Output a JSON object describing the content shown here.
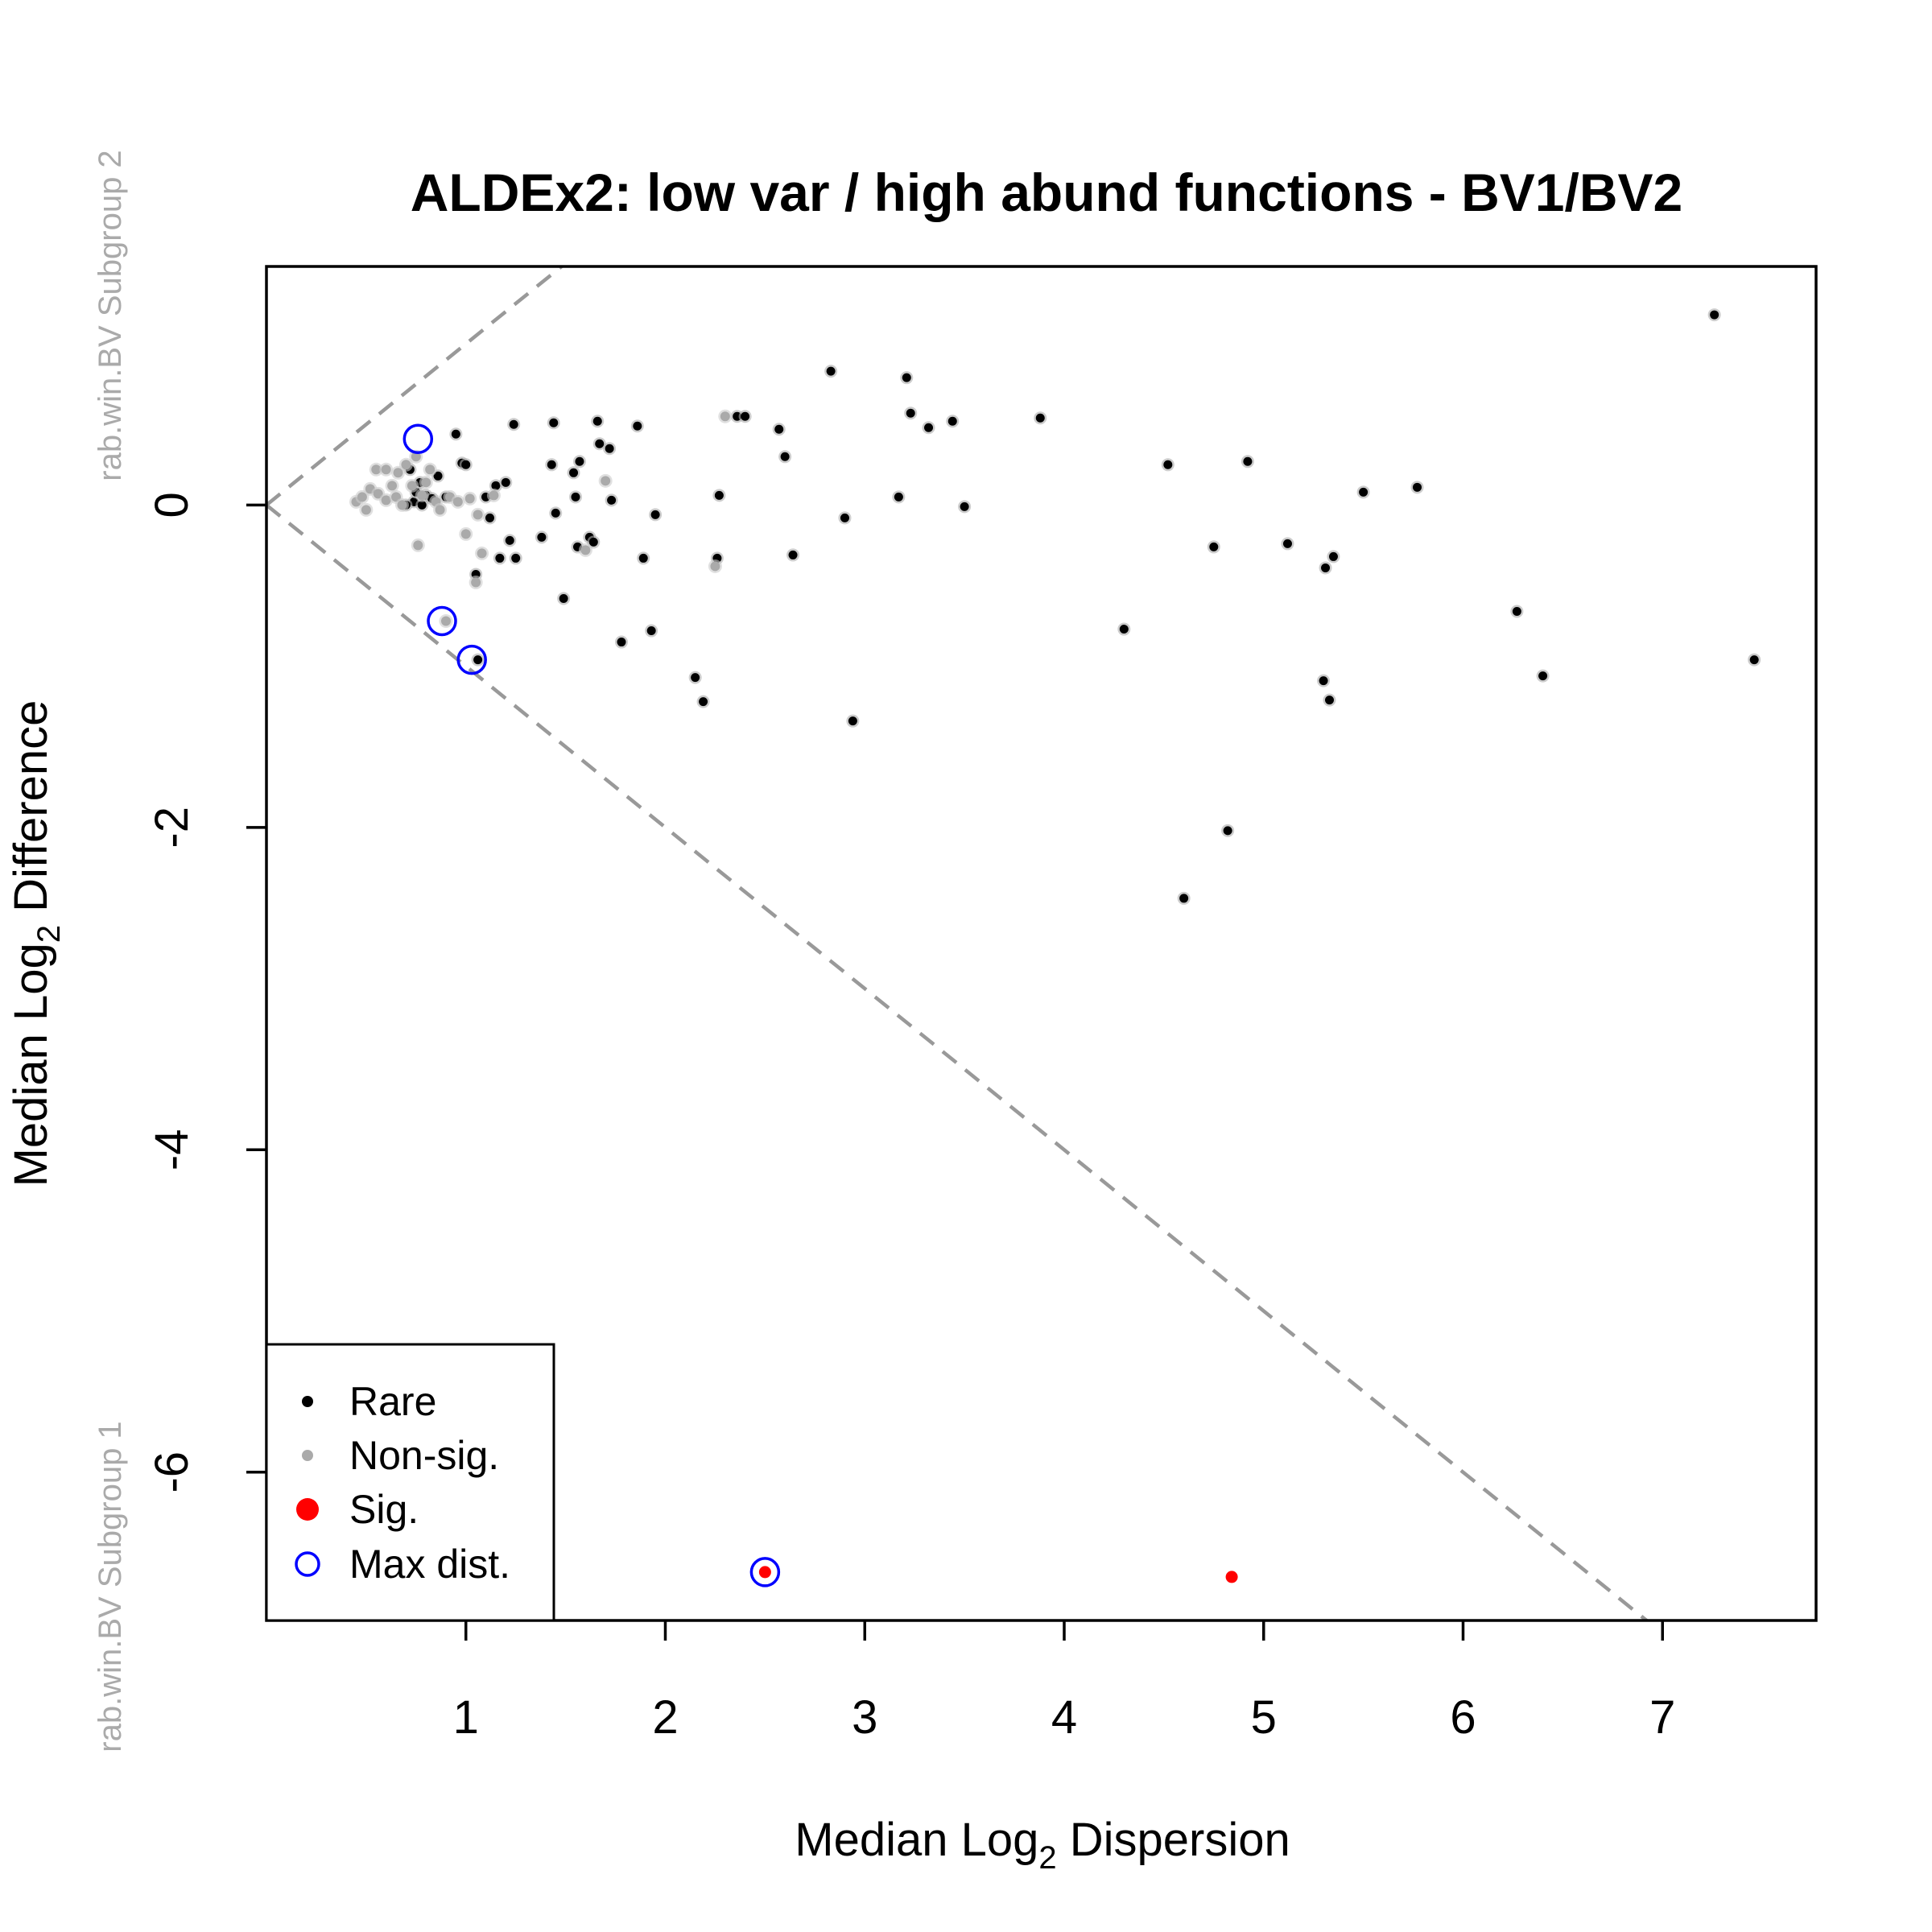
{
  "chart_data": {
    "type": "scatter",
    "title": "ALDEx2: low var / high abund functions - BV1/BV2",
    "xlabel": {
      "pre": "Median  Log",
      "sub": "2",
      "post": "  Dispersion"
    },
    "ylabel": {
      "pre": "Median  Log",
      "sub": "2",
      "post": "  Difference"
    },
    "group_label_top": "rab.win.BV Subgroup 2",
    "group_label_bottom": "rab.win.BV Subgroup 1",
    "xlim": [
      0.0,
      7.77
    ],
    "ylim": [
      -6.92,
      1.48
    ],
    "x_ticks": [
      1,
      2,
      3,
      4,
      5,
      6,
      7
    ],
    "x_tick_labels": [
      "1",
      "2",
      "3",
      "4",
      "5",
      "6",
      "7"
    ],
    "y_ticks": [
      0,
      -2,
      -4,
      -6
    ],
    "y_tick_labels": [
      "0",
      "-2",
      "-4",
      "-6"
    ],
    "grid": false,
    "reference_lines": {
      "slopes": [
        1,
        -1
      ],
      "color": "#999999",
      "style": "dashed"
    },
    "legend": {
      "position": "bottom-left",
      "entries": [
        {
          "label": "Rare",
          "marker": "small-dot",
          "color": "#000000"
        },
        {
          "label": "Non-sig.",
          "marker": "small-dot",
          "color": "#aaaaaa"
        },
        {
          "label": "Sig.",
          "marker": "dot",
          "color": "#ff0000"
        },
        {
          "label": "Max dist.",
          "marker": "ring",
          "color": "#0000ff"
        }
      ]
    },
    "series": [
      {
        "name": "Rare",
        "color": "#000000",
        "points": [
          [
            0.72,
            0.22
          ],
          [
            0.74,
            0.02
          ],
          [
            0.77,
            0.14
          ],
          [
            0.8,
            0.06
          ],
          [
            0.7,
            0.0
          ],
          [
            0.75,
            0.08
          ],
          [
            0.83,
            0.04
          ],
          [
            0.86,
            0.18
          ],
          [
            0.78,
            0.0
          ],
          [
            0.9,
            0.05
          ],
          [
            0.95,
            0.44
          ],
          [
            0.98,
            0.26
          ],
          [
            1.0,
            0.25
          ],
          [
            1.05,
            -0.43
          ],
          [
            1.06,
            -0.96
          ],
          [
            1.1,
            0.05
          ],
          [
            1.12,
            -0.08
          ],
          [
            1.15,
            0.12
          ],
          [
            1.17,
            -0.33
          ],
          [
            1.2,
            0.14
          ],
          [
            1.22,
            -0.22
          ],
          [
            1.24,
            0.5
          ],
          [
            1.25,
            -0.33
          ],
          [
            1.38,
            -0.2
          ],
          [
            1.43,
            0.25
          ],
          [
            1.44,
            0.51
          ],
          [
            1.45,
            -0.05
          ],
          [
            1.49,
            -0.58
          ],
          [
            1.54,
            0.2
          ],
          [
            1.55,
            0.05
          ],
          [
            1.56,
            -0.26
          ],
          [
            1.57,
            0.27
          ],
          [
            1.62,
            -0.2
          ],
          [
            1.64,
            -0.23
          ],
          [
            1.66,
            0.52
          ],
          [
            1.67,
            0.38
          ],
          [
            1.72,
            0.35
          ],
          [
            1.73,
            0.03
          ],
          [
            1.78,
            -0.85
          ],
          [
            1.86,
            0.49
          ],
          [
            1.89,
            -0.33
          ],
          [
            1.93,
            -0.78
          ],
          [
            1.95,
            -0.06
          ],
          [
            2.15,
            -1.07
          ],
          [
            2.19,
            -1.22
          ],
          [
            2.26,
            -0.33
          ],
          [
            2.27,
            0.06
          ],
          [
            2.36,
            0.55
          ],
          [
            2.4,
            0.55
          ],
          [
            2.57,
            0.47
          ],
          [
            2.6,
            0.3
          ],
          [
            2.64,
            -0.31
          ],
          [
            2.83,
            0.83
          ],
          [
            2.9,
            -0.08
          ],
          [
            2.94,
            -1.34
          ],
          [
            3.17,
            0.05
          ],
          [
            3.21,
            0.79
          ],
          [
            3.23,
            0.57
          ],
          [
            3.32,
            0.48
          ],
          [
            3.44,
            0.52
          ],
          [
            3.5,
            -0.01
          ],
          [
            3.88,
            0.54
          ],
          [
            4.3,
            -0.77
          ],
          [
            4.52,
            0.25
          ],
          [
            4.6,
            -2.44
          ],
          [
            4.75,
            -0.26
          ],
          [
            4.82,
            -2.02
          ],
          [
            4.92,
            0.27
          ],
          [
            5.12,
            -0.24
          ],
          [
            5.3,
            -1.09
          ],
          [
            5.31,
            -0.39
          ],
          [
            5.33,
            -1.21
          ],
          [
            5.35,
            -0.32
          ],
          [
            5.5,
            0.08
          ],
          [
            5.77,
            0.11
          ],
          [
            6.27,
            -0.66
          ],
          [
            6.4,
            -1.06
          ],
          [
            7.26,
            1.18
          ],
          [
            7.46,
            -0.96
          ]
        ]
      },
      {
        "name": "Non-sig.",
        "color": "#aaaaaa",
        "points": [
          [
            0.45,
            0.02
          ],
          [
            0.48,
            0.05
          ],
          [
            0.5,
            -0.03
          ],
          [
            0.52,
            0.1
          ],
          [
            0.55,
            0.22
          ],
          [
            0.56,
            0.07
          ],
          [
            0.6,
            0.22
          ],
          [
            0.6,
            0.03
          ],
          [
            0.63,
            0.12
          ],
          [
            0.65,
            0.05
          ],
          [
            0.66,
            0.2
          ],
          [
            0.68,
            0.0
          ],
          [
            0.7,
            0.25
          ],
          [
            0.73,
            0.12
          ],
          [
            0.75,
            0.3
          ],
          [
            0.76,
            -0.25
          ],
          [
            0.78,
            0.06
          ],
          [
            0.8,
            0.14
          ],
          [
            0.82,
            0.22
          ],
          [
            0.85,
            0.02
          ],
          [
            0.87,
            -0.03
          ],
          [
            0.9,
            -0.72
          ],
          [
            0.92,
            0.05
          ],
          [
            0.96,
            0.02
          ],
          [
            1.0,
            -0.18
          ],
          [
            1.02,
            0.04
          ],
          [
            1.05,
            -0.48
          ],
          [
            1.06,
            -0.06
          ],
          [
            1.08,
            -0.3
          ],
          [
            1.14,
            0.06
          ],
          [
            1.6,
            -0.28
          ],
          [
            1.7,
            0.15
          ],
          [
            2.25,
            -0.38
          ],
          [
            2.3,
            0.55
          ]
        ]
      },
      {
        "name": "Sig.",
        "color": "#ff0000",
        "points": [
          [
            2.5,
            -6.62
          ],
          [
            4.84,
            -6.65
          ]
        ]
      },
      {
        "name": "Max dist.",
        "color": "#0000ff",
        "points": [
          [
            0.76,
            0.41
          ],
          [
            0.88,
            -0.72
          ],
          [
            1.03,
            -0.96
          ],
          [
            2.5,
            -6.62
          ]
        ]
      }
    ]
  }
}
